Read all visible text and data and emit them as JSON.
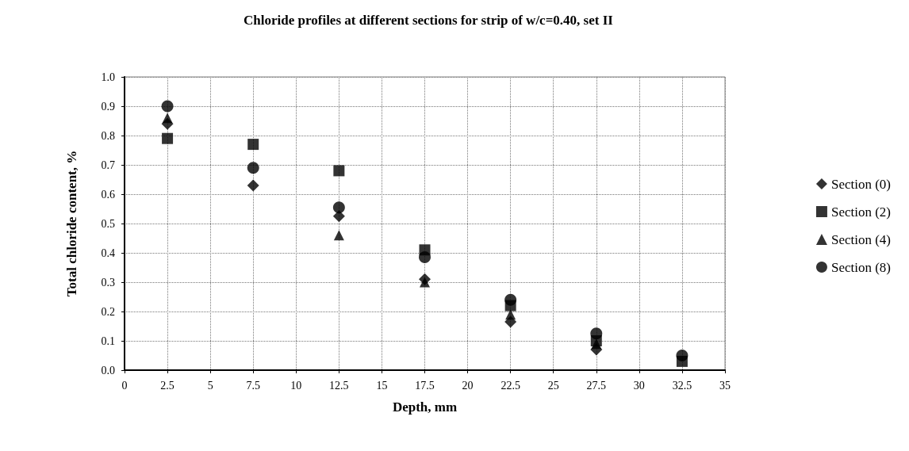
{
  "chart_data": {
    "type": "scatter",
    "title": "Chloride profiles at different sections for strip of w/c=0.40, set II",
    "xlabel": "Depth, mm",
    "ylabel": "Total chloride content, %",
    "x": [
      2.5,
      7.5,
      12.5,
      17.5,
      22.5,
      27.5,
      32.5
    ],
    "series": [
      {
        "name": "Section (0)",
        "color": "#000000",
        "marker": "diamond",
        "values": [
          0.84,
          0.63,
          0.525,
          0.31,
          0.165,
          0.07,
          null
        ]
      },
      {
        "name": "Section (2)",
        "color": "#000000",
        "marker": "square",
        "values": [
          0.79,
          0.77,
          0.68,
          0.41,
          0.22,
          0.1,
          0.03
        ]
      },
      {
        "name": "Section (4)",
        "color": "#000000",
        "marker": "triangle",
        "values": [
          0.86,
          null,
          0.46,
          0.3,
          0.19,
          0.09,
          null
        ]
      },
      {
        "name": "Section (8)",
        "color": "#000000",
        "marker": "circle",
        "values": [
          0.9,
          0.69,
          0.555,
          0.385,
          0.24,
          0.125,
          0.05
        ]
      }
    ],
    "xlim": [
      0,
      35
    ],
    "xticks": [
      0,
      2.5,
      5,
      7.5,
      10,
      12.5,
      15,
      17.5,
      20,
      22.5,
      25,
      27.5,
      30,
      32.5,
      35
    ],
    "ylim": [
      0,
      1
    ],
    "yticks": [
      {
        "value": 0,
        "label": "0.0"
      },
      0.1,
      0.2,
      0.3,
      0.4,
      0.5,
      0.6,
      0.7,
      0.8,
      0.9,
      {
        "value": 1,
        "label": "1.0"
      }
    ],
    "grid": true,
    "legend": "right"
  }
}
